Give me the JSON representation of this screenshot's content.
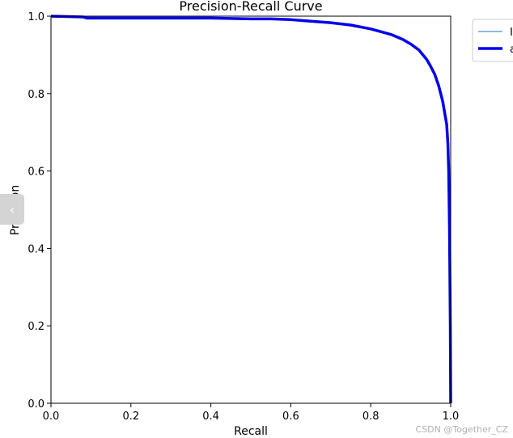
{
  "chart_data": {
    "type": "line",
    "title": "Precision-Recall Curve",
    "xlabel": "Recall",
    "ylabel": "Precision",
    "xlim": [
      0,
      1
    ],
    "ylim": [
      0,
      1
    ],
    "xticks": [
      "0.0",
      "0.2",
      "0.4",
      "0.6",
      "0.8",
      "1.0"
    ],
    "yticks": [
      "0.0",
      "0.2",
      "0.4",
      "0.6",
      "0.8",
      "1.0"
    ],
    "grid": false,
    "legend_position": "outside-top-right",
    "series": [
      {
        "name": "I",
        "color": "#4a90d9",
        "style": "thin",
        "x": [
          0.0,
          0.08,
          0.09,
          0.2,
          0.3,
          0.4,
          0.5,
          0.55,
          0.6,
          0.65,
          0.7,
          0.75,
          0.8,
          0.85,
          0.88,
          0.9,
          0.92,
          0.94,
          0.95,
          0.96,
          0.965,
          0.97,
          0.975,
          0.98,
          0.985,
          0.99,
          0.993,
          0.995,
          0.997,
          0.999,
          1.0
        ],
        "y": [
          1.0,
          0.998,
          0.995,
          0.995,
          0.995,
          0.995,
          0.993,
          0.993,
          0.991,
          0.987,
          0.983,
          0.977,
          0.967,
          0.953,
          0.94,
          0.928,
          0.913,
          0.888,
          0.87,
          0.85,
          0.835,
          0.82,
          0.8,
          0.78,
          0.75,
          0.72,
          0.67,
          0.6,
          0.45,
          0.2,
          0.0
        ]
      },
      {
        "name": "a",
        "color": "#0000ee",
        "style": "thick",
        "x": [
          0.0,
          0.08,
          0.09,
          0.2,
          0.3,
          0.4,
          0.5,
          0.55,
          0.6,
          0.65,
          0.7,
          0.75,
          0.8,
          0.85,
          0.88,
          0.9,
          0.92,
          0.94,
          0.95,
          0.96,
          0.965,
          0.97,
          0.975,
          0.98,
          0.985,
          0.99,
          0.993,
          0.995,
          0.997,
          0.999,
          1.0
        ],
        "y": [
          1.0,
          0.998,
          0.995,
          0.995,
          0.995,
          0.995,
          0.993,
          0.993,
          0.991,
          0.987,
          0.983,
          0.977,
          0.967,
          0.953,
          0.94,
          0.928,
          0.913,
          0.888,
          0.87,
          0.85,
          0.835,
          0.82,
          0.8,
          0.78,
          0.75,
          0.72,
          0.67,
          0.6,
          0.45,
          0.2,
          0.0
        ]
      }
    ]
  },
  "side_tab": {
    "icon": "chevron-left-icon",
    "glyph": "‹"
  },
  "watermark": "CSDN @Together_CZ"
}
